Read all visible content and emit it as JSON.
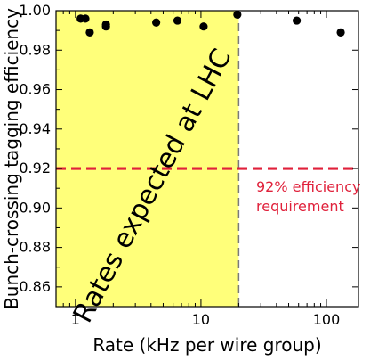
{
  "chart_data": {
    "type": "scatter",
    "xlabel": "Rate (kHz per wire group)",
    "ylabel": "Bunch-crossing tagging efficiency",
    "x_scale": "log",
    "xlim": [
      0.7,
      180
    ],
    "ylim": [
      0.85,
      1.0
    ],
    "x_ticks": [
      1,
      10,
      100
    ],
    "x_tick_labels": [
      "1",
      "10",
      "100"
    ],
    "y_ticks": [
      0.86,
      0.88,
      0.9,
      0.92,
      0.94,
      0.96,
      0.98,
      1.0
    ],
    "y_tick_labels": [
      "0.86",
      "0.88",
      "0.90",
      "0.92",
      "0.94",
      "0.96",
      "0.98",
      "1.00"
    ],
    "points": [
      {
        "x": 1.1,
        "y": 0.996
      },
      {
        "x": 1.2,
        "y": 0.996
      },
      {
        "x": 1.3,
        "y": 0.989
      },
      {
        "x": 1.75,
        "y": 0.993
      },
      {
        "x": 1.75,
        "y": 0.992
      },
      {
        "x": 4.4,
        "y": 0.994
      },
      {
        "x": 6.5,
        "y": 0.995
      },
      {
        "x": 10.5,
        "y": 0.992
      },
      {
        "x": 19.5,
        "y": 0.998
      },
      {
        "x": 58,
        "y": 0.995
      },
      {
        "x": 130,
        "y": 0.989
      }
    ],
    "lhc_region": {
      "x_end": 20,
      "label": "Rates expected at LHC",
      "color": "#ffff7a"
    },
    "requirement": {
      "y": 0.92,
      "label_lines": [
        "92% efficiency",
        "requirement"
      ],
      "color": "#e0213b"
    },
    "grid": false
  }
}
